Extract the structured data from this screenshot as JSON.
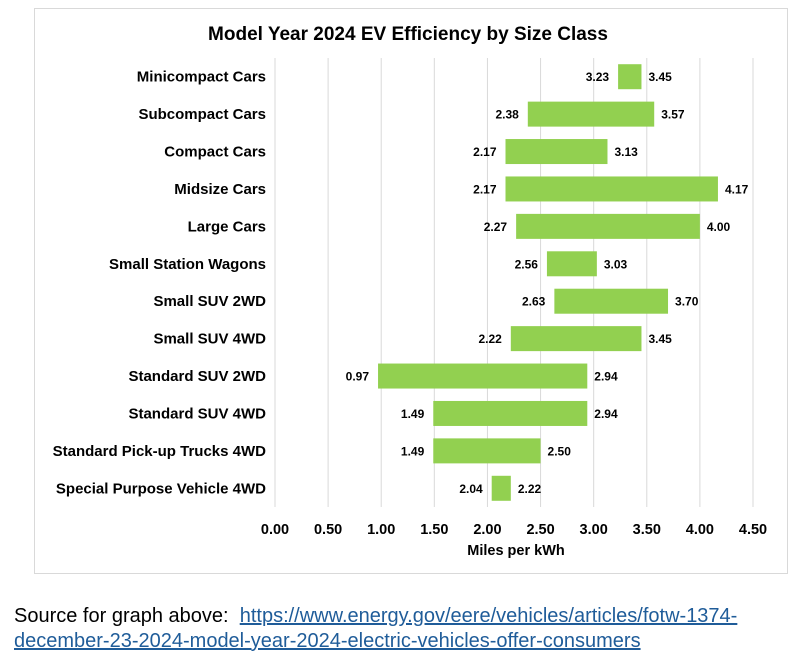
{
  "chart_data": {
    "type": "bar",
    "subtype": "floating-range-horizontal",
    "title": "Model Year 2024 EV Efficiency by Size Class",
    "xlabel": "Miles per kWh",
    "ylabel": "",
    "xlim": [
      0,
      4.5
    ],
    "x_ticks": [
      "0.00",
      "0.50",
      "1.00",
      "1.50",
      "2.00",
      "2.50",
      "3.00",
      "3.50",
      "4.00",
      "4.50"
    ],
    "grid": true,
    "legend": "none",
    "bar_color": "#92d050",
    "categories": [
      "Minicompact Cars",
      "Subcompact Cars",
      "Compact Cars",
      "Midsize Cars",
      "Large Cars",
      "Small Station Wagons",
      "Small SUV 2WD",
      "Small SUV 4WD",
      "Standard SUV 2WD",
      "Standard SUV 4WD",
      "Standard Pick-up Trucks 4WD",
      "Special Purpose Vehicle 4WD"
    ],
    "ranges": [
      {
        "min": "3.23",
        "max": "3.45"
      },
      {
        "min": "2.38",
        "max": "3.57"
      },
      {
        "min": "2.17",
        "max": "3.13"
      },
      {
        "min": "2.17",
        "max": "4.17"
      },
      {
        "min": "2.27",
        "max": "4.00"
      },
      {
        "min": "2.56",
        "max": "3.03"
      },
      {
        "min": "2.63",
        "max": "3.70"
      },
      {
        "min": "2.22",
        "max": "3.45"
      },
      {
        "min": "0.97",
        "max": "2.94"
      },
      {
        "min": "1.49",
        "max": "2.94"
      },
      {
        "min": "1.49",
        "max": "2.50"
      },
      {
        "min": "2.04",
        "max": "2.22"
      }
    ]
  },
  "source": {
    "prefix": "Source for graph above:  ",
    "link_text": "https://www.energy.gov/eere/vehicles/articles/fotw-1374-december-23-2024-model-year-2024-electric-vehicles-offer-consumers"
  }
}
